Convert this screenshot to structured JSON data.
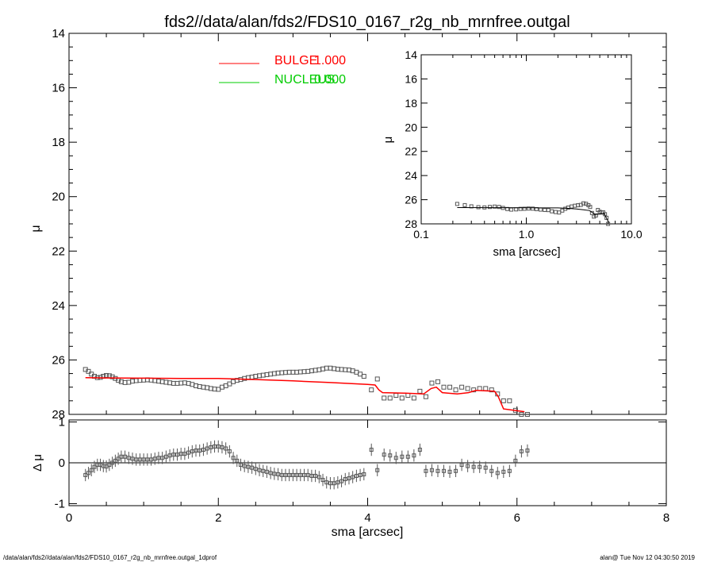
{
  "title": "fds2//data/alan/fds2/FDS10_0167_r2g_nb_mrnfree.outgal",
  "footer": {
    "left": "/data/alan/fds2//data/alan/fds2/FDS10_0167_r2g_nb_mrnfree.outgal_1dprof",
    "right": "alan@  Tue Nov 12 04:30:50 2019"
  },
  "colors": {
    "bulge": "#ff0000",
    "nucleus": "#00cc00",
    "points": "#555555"
  },
  "chart_data": [
    {
      "type": "scatter",
      "panel": "main",
      "xlabel": "sma [arcsec]",
      "ylabel": "μ",
      "xlim": [
        0,
        8
      ],
      "ylim": [
        28,
        14
      ],
      "xticks": [
        "0",
        "2",
        "4",
        "6",
        "8"
      ],
      "yticks": [
        "14",
        "16",
        "18",
        "20",
        "22",
        "24",
        "26",
        "28"
      ],
      "legend": [
        {
          "label": "BULGE",
          "value": "1.000",
          "color": "#ff0000"
        },
        {
          "label": "NUCLEUS",
          "value": "0.000",
          "color": "#00cc00"
        }
      ],
      "series": [
        {
          "name": "BULGE",
          "kind": "line",
          "x": [
            0.22,
            0.5,
            1.0,
            1.5,
            2.0,
            2.5,
            3.0,
            3.5,
            4.0,
            4.1,
            4.15,
            4.2,
            4.5,
            4.75,
            4.85,
            4.92,
            5.0,
            5.2,
            5.35,
            5.45,
            5.7,
            5.75,
            5.82,
            6.1
          ],
          "y": [
            26.65,
            26.66,
            26.67,
            26.68,
            26.68,
            26.72,
            26.77,
            26.83,
            26.9,
            26.92,
            27.1,
            27.2,
            27.22,
            27.25,
            27.05,
            27.0,
            27.2,
            27.25,
            27.2,
            27.12,
            27.15,
            27.35,
            27.8,
            27.9
          ]
        },
        {
          "name": "data",
          "kind": "markers",
          "x": [
            0.22,
            0.26,
            0.3,
            0.34,
            0.38,
            0.42,
            0.46,
            0.5,
            0.54,
            0.58,
            0.62,
            0.66,
            0.7,
            0.75,
            0.8,
            0.85,
            0.9,
            0.95,
            1.0,
            1.05,
            1.1,
            1.15,
            1.2,
            1.25,
            1.3,
            1.35,
            1.4,
            1.45,
            1.5,
            1.55,
            1.6,
            1.65,
            1.7,
            1.75,
            1.8,
            1.85,
            1.9,
            1.95,
            2.0,
            2.05,
            2.1,
            2.15,
            2.2,
            2.25,
            2.3,
            2.35,
            2.4,
            2.45,
            2.5,
            2.55,
            2.6,
            2.65,
            2.7,
            2.75,
            2.8,
            2.85,
            2.9,
            2.95,
            3.0,
            3.05,
            3.1,
            3.15,
            3.2,
            3.25,
            3.3,
            3.35,
            3.4,
            3.45,
            3.5,
            3.55,
            3.6,
            3.65,
            3.7,
            3.75,
            3.8,
            3.85,
            3.9,
            3.95,
            4.05,
            4.13,
            4.22,
            4.3,
            4.38,
            4.46,
            4.54,
            4.62,
            4.7,
            4.78,
            4.86,
            4.94,
            5.02,
            5.1,
            5.18,
            5.26,
            5.34,
            5.42,
            5.5,
            5.58,
            5.66,
            5.74,
            5.82,
            5.9,
            5.98,
            6.06,
            6.14
          ],
          "y": [
            26.35,
            26.42,
            26.52,
            26.6,
            26.65,
            26.64,
            26.6,
            26.57,
            26.58,
            26.62,
            26.68,
            26.75,
            26.8,
            26.83,
            26.82,
            26.78,
            26.76,
            26.75,
            26.74,
            26.73,
            26.74,
            26.76,
            26.78,
            26.8,
            26.82,
            26.84,
            26.86,
            26.86,
            26.85,
            26.84,
            26.86,
            26.9,
            26.95,
            26.98,
            27.0,
            27.02,
            27.05,
            27.07,
            27.08,
            27.0,
            26.95,
            26.88,
            26.8,
            26.75,
            26.72,
            26.68,
            26.65,
            26.63,
            26.6,
            26.58,
            26.56,
            26.54,
            26.52,
            26.5,
            26.48,
            26.47,
            26.46,
            26.45,
            26.45,
            26.45,
            26.44,
            26.43,
            26.42,
            26.4,
            26.38,
            26.36,
            26.33,
            26.3,
            26.3,
            26.32,
            26.34,
            26.35,
            26.36,
            26.37,
            26.4,
            26.45,
            26.52,
            26.6,
            27.1,
            26.7,
            27.4,
            27.4,
            27.3,
            27.4,
            27.3,
            27.4,
            27.15,
            27.35,
            26.85,
            26.8,
            27.0,
            27.0,
            27.1,
            27.0,
            27.05,
            27.1,
            27.05,
            27.05,
            27.1,
            27.25,
            27.5,
            27.5,
            27.85,
            28.0,
            28.0
          ]
        }
      ]
    },
    {
      "type": "scatter",
      "panel": "inset",
      "xlabel": "sma [arcsec]",
      "ylabel": "μ",
      "xscale": "log",
      "xlim": [
        0.1,
        10.0
      ],
      "ylim": [
        28,
        14
      ],
      "xticks": [
        "0.1",
        "1.0",
        "10.0"
      ],
      "yticks": [
        "14",
        "16",
        "18",
        "20",
        "22",
        "24",
        "26",
        "28"
      ],
      "series": [
        {
          "name": "BULGE",
          "kind": "line",
          "x": [
            0.22,
            0.5,
            1.0,
            1.5,
            2.0,
            2.5,
            3.0,
            3.5,
            4.0,
            4.5,
            5.0,
            5.5,
            6.1
          ],
          "y": [
            26.65,
            26.66,
            26.67,
            26.68,
            26.68,
            26.72,
            26.77,
            26.83,
            26.9,
            27.22,
            27.2,
            27.15,
            27.9
          ]
        },
        {
          "name": "data",
          "kind": "markers",
          "x": [
            0.22,
            0.26,
            0.3,
            0.35,
            0.4,
            0.45,
            0.5,
            0.55,
            0.6,
            0.66,
            0.72,
            0.8,
            0.88,
            0.96,
            1.05,
            1.15,
            1.25,
            1.37,
            1.5,
            1.62,
            1.75,
            1.9,
            2.05,
            2.2,
            2.35,
            2.5,
            2.7,
            2.9,
            3.1,
            3.3,
            3.5,
            3.7,
            3.9,
            4.05,
            4.22,
            4.4,
            4.6,
            4.8,
            5.0,
            5.2,
            5.4,
            5.6,
            5.8,
            6.0
          ],
          "y": [
            26.35,
            26.45,
            26.55,
            26.62,
            26.64,
            26.6,
            26.57,
            26.6,
            26.68,
            26.77,
            26.82,
            26.8,
            26.76,
            26.75,
            26.73,
            26.74,
            26.78,
            26.82,
            26.85,
            26.86,
            26.96,
            27.02,
            27.06,
            26.9,
            26.75,
            26.65,
            26.56,
            26.5,
            26.46,
            26.43,
            26.3,
            26.34,
            26.45,
            26.6,
            27.1,
            27.4,
            27.3,
            26.85,
            27.0,
            27.05,
            27.05,
            27.2,
            27.5,
            28.0
          ]
        }
      ]
    },
    {
      "type": "scatter",
      "panel": "residuals",
      "xlabel": "sma [arcsec]",
      "ylabel": "Δ μ",
      "xlim": [
        0,
        8
      ],
      "ylim": [
        -1.05,
        1.05
      ],
      "xticks": [
        "0",
        "2",
        "4",
        "6",
        "8"
      ],
      "yticks": [
        "1",
        "0",
        "-1"
      ],
      "series": [
        {
          "name": "residuals",
          "x": [
            0.22,
            0.26,
            0.3,
            0.34,
            0.38,
            0.42,
            0.46,
            0.5,
            0.54,
            0.58,
            0.62,
            0.66,
            0.7,
            0.75,
            0.8,
            0.85,
            0.9,
            0.95,
            1.0,
            1.05,
            1.1,
            1.15,
            1.2,
            1.25,
            1.3,
            1.35,
            1.4,
            1.45,
            1.5,
            1.55,
            1.6,
            1.65,
            1.7,
            1.75,
            1.8,
            1.85,
            1.9,
            1.95,
            2.0,
            2.05,
            2.1,
            2.15,
            2.2,
            2.25,
            2.3,
            2.35,
            2.4,
            2.45,
            2.5,
            2.55,
            2.6,
            2.65,
            2.7,
            2.75,
            2.8,
            2.85,
            2.9,
            2.95,
            3.0,
            3.05,
            3.1,
            3.15,
            3.2,
            3.25,
            3.3,
            3.35,
            3.4,
            3.45,
            3.5,
            3.55,
            3.6,
            3.65,
            3.7,
            3.75,
            3.8,
            3.85,
            3.9,
            3.95,
            4.05,
            4.13,
            4.22,
            4.3,
            4.38,
            4.46,
            4.54,
            4.62,
            4.7,
            4.78,
            4.86,
            4.94,
            5.02,
            5.1,
            5.18,
            5.26,
            5.34,
            5.42,
            5.5,
            5.58,
            5.66,
            5.74,
            5.82,
            5.9,
            5.98,
            6.06,
            6.14
          ],
          "y": [
            -0.3,
            -0.25,
            -0.18,
            -0.1,
            -0.05,
            -0.05,
            -0.08,
            -0.09,
            -0.05,
            0.0,
            0.05,
            0.1,
            0.15,
            0.15,
            0.12,
            0.1,
            0.08,
            0.08,
            0.08,
            0.08,
            0.08,
            0.1,
            0.12,
            0.12,
            0.15,
            0.18,
            0.2,
            0.2,
            0.22,
            0.22,
            0.25,
            0.28,
            0.3,
            0.3,
            0.32,
            0.35,
            0.38,
            0.4,
            0.4,
            0.38,
            0.35,
            0.28,
            0.12,
            0.05,
            -0.05,
            -0.08,
            -0.1,
            -0.12,
            -0.15,
            -0.18,
            -0.2,
            -0.22,
            -0.25,
            -0.27,
            -0.28,
            -0.3,
            -0.3,
            -0.3,
            -0.3,
            -0.3,
            -0.3,
            -0.3,
            -0.3,
            -0.32,
            -0.32,
            -0.35,
            -0.42,
            -0.48,
            -0.5,
            -0.5,
            -0.48,
            -0.45,
            -0.4,
            -0.38,
            -0.35,
            -0.32,
            -0.3,
            -0.28,
            0.32,
            -0.18,
            0.2,
            0.18,
            0.12,
            0.15,
            0.15,
            0.18,
            0.32,
            -0.2,
            -0.18,
            -0.2,
            -0.2,
            -0.22,
            -0.2,
            -0.05,
            -0.08,
            -0.1,
            -0.1,
            -0.12,
            -0.2,
            -0.25,
            -0.22,
            -0.2,
            0.05,
            0.28,
            0.3
          ],
          "err": 0.15
        }
      ]
    }
  ]
}
